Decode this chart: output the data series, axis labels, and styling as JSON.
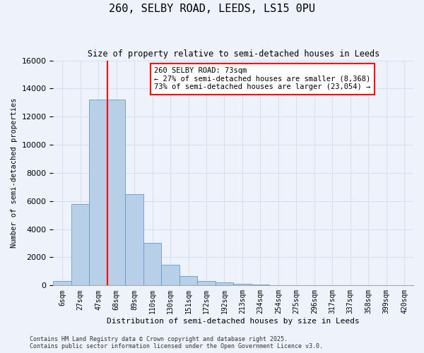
{
  "title_line1": "260, SELBY ROAD, LEEDS, LS15 0PU",
  "title_line2": "Size of property relative to semi-detached houses in Leeds",
  "xlabel": "Distribution of semi-detached houses by size in Leeds",
  "ylabel": "Number of semi-detached properties",
  "bar_color": "#b8cfe8",
  "bar_edge_color": "#6699cc",
  "categories": [
    "6sqm",
    "27sqm",
    "47sqm",
    "68sqm",
    "89sqm",
    "110sqm",
    "130sqm",
    "151sqm",
    "172sqm",
    "192sqm",
    "213sqm",
    "234sqm",
    "254sqm",
    "275sqm",
    "296sqm",
    "317sqm",
    "337sqm",
    "358sqm",
    "399sqm",
    "420sqm"
  ],
  "values": [
    300,
    5800,
    13200,
    13200,
    6500,
    3050,
    1450,
    650,
    300,
    200,
    120,
    70,
    0,
    0,
    0,
    0,
    0,
    0,
    0,
    0
  ],
  "ylim": [
    0,
    16000
  ],
  "yticks": [
    0,
    2000,
    4000,
    6000,
    8000,
    10000,
    12000,
    14000,
    16000
  ],
  "property_label": "260 SELBY ROAD: 73sqm",
  "pct_smaller": 27,
  "pct_larger": 73,
  "n_smaller": "8,368",
  "n_larger": "23,054",
  "vline_bin_index": 3,
  "footer_line1": "Contains HM Land Registry data © Crown copyright and database right 2025.",
  "footer_line2": "Contains public sector information licensed under the Open Government Licence v3.0.",
  "background_color": "#eef2fb",
  "grid_color": "#d8e0f0"
}
